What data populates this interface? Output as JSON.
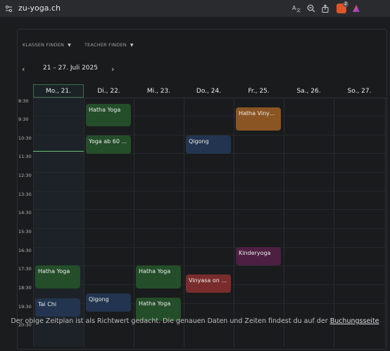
{
  "browser": {
    "url": "zu-yoga.ch",
    "icons": [
      "site-settings-icon",
      "translate-icon",
      "zoom-out-icon",
      "share-icon",
      "brave-shield-icon",
      "brave-rewards-icon"
    ],
    "shield_count": "2"
  },
  "filters": [
    {
      "label": "KLASSEN FINDEN"
    },
    {
      "label": "TEACHER FINDEN"
    }
  ],
  "week": {
    "label": "21 – 27. Juli 2025",
    "prev": "‹",
    "next": "›"
  },
  "days": [
    "Mo., 21.",
    "Di., 22.",
    "Mi., 23.",
    "Do., 24.",
    "Fr., 25.",
    "Sa., 26.",
    "So., 27."
  ],
  "times": [
    "8:30",
    "9:30",
    "10:30",
    "11:30",
    "12:30",
    "13:30",
    "14:30",
    "15:30",
    "16:30",
    "17:30",
    "18:30",
    "19:30",
    "20:30"
  ],
  "events": [
    {
      "title": "Hatha Yoga",
      "color": "#244d2a"
    },
    {
      "title": "Yoga ab 60 ...",
      "color": "#244d2a"
    },
    {
      "title": "Qigong",
      "color": "#22344f"
    },
    {
      "title": "Hatha Vinya...",
      "color": "#8a5523"
    },
    {
      "title": "Kinderyoga",
      "color": "#4d1f42"
    },
    {
      "title": "Hatha Yoga",
      "color": "#244d2a"
    },
    {
      "title": "Hatha Yoga",
      "color": "#244d2a"
    },
    {
      "title": "Vinyasa on ...",
      "color": "#7a2c2c"
    },
    {
      "title": "Tai Chi",
      "color": "#22344f"
    },
    {
      "title": "Qigong",
      "color": "#22344f"
    },
    {
      "title": "Hatha Yoga",
      "color": "#244d2a"
    }
  ],
  "footer": {
    "text": "Der obige Zeitplan ist als Richtwert gedacht. Die genauen Daten und Zeiten findest du auf der",
    "link": "Buchungsseite"
  }
}
